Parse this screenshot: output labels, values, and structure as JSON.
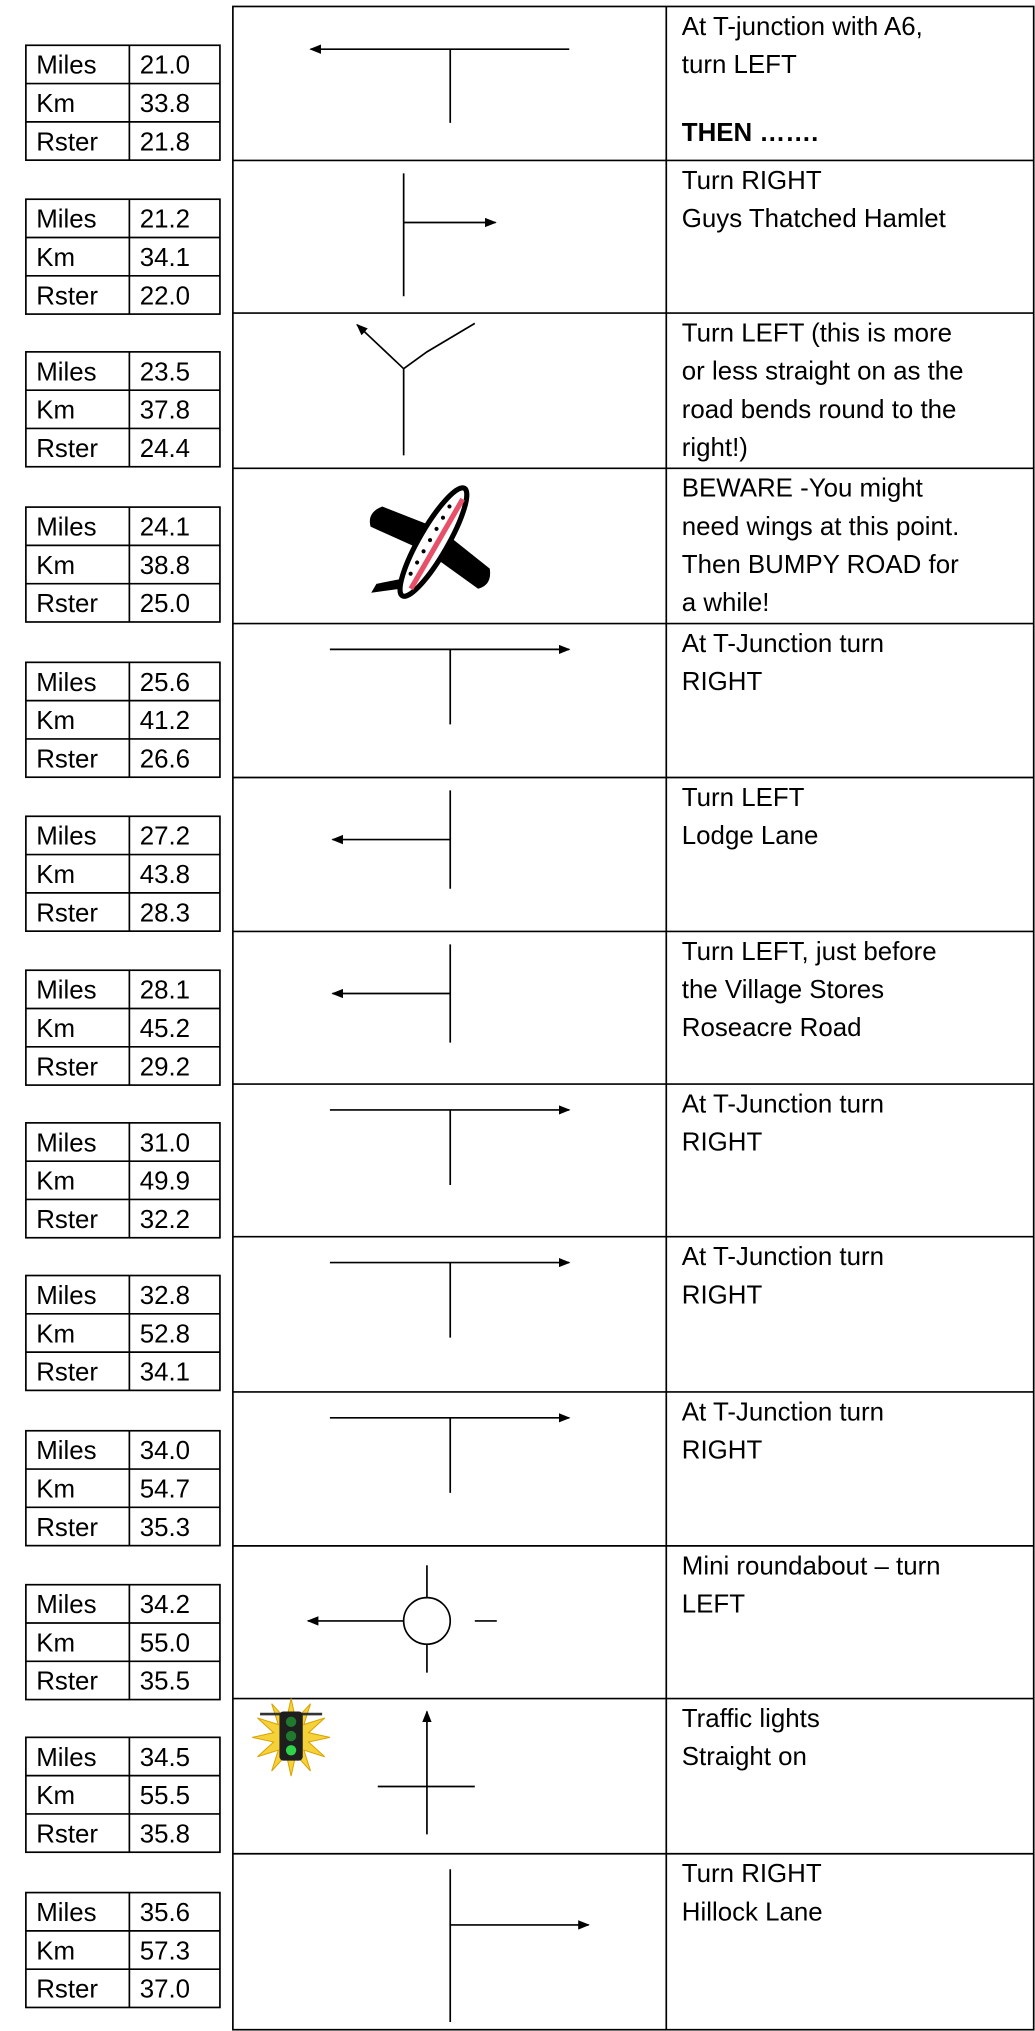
{
  "rows": [
    {
      "labels": [
        "Miles",
        "Km",
        "Rster"
      ],
      "values": [
        "21.0",
        "33.8",
        "21.8"
      ],
      "text": [
        "At T-junction with A6,",
        "turn LEFT"
      ],
      "emphasis": "THEN ……."
    },
    {
      "labels": [
        "Miles",
        "Km",
        "Rster"
      ],
      "values": [
        "21.2",
        "34.1",
        "22.0"
      ],
      "text": [
        "Turn RIGHT",
        "Guys Thatched Hamlet"
      ]
    },
    {
      "labels": [
        "Miles",
        "Km",
        "Rster"
      ],
      "values": [
        "23.5",
        "37.8",
        "24.4"
      ],
      "text": [
        "Turn LEFT (this is more",
        "or less straight on as the",
        "road bends round to the",
        "right!)"
      ]
    },
    {
      "labels": [
        "Miles",
        "Km",
        "Rster"
      ],
      "values": [
        "24.1",
        "38.8",
        "25.0"
      ],
      "text": [
        "BEWARE -You might",
        "need wings at this point.",
        "Then BUMPY ROAD for",
        "a while!"
      ]
    },
    {
      "labels": [
        "Miles",
        "Km",
        "Rster"
      ],
      "values": [
        "25.6",
        "41.2",
        "26.6"
      ],
      "text": [
        "At T-Junction turn",
        "RIGHT"
      ]
    },
    {
      "labels": [
        "Miles",
        "Km",
        "Rster"
      ],
      "values": [
        "27.2",
        "43.8",
        "28.3"
      ],
      "text": [
        "Turn LEFT",
        "Lodge Lane"
      ]
    },
    {
      "labels": [
        "Miles",
        "Km",
        "Rster"
      ],
      "values": [
        "28.1",
        "45.2",
        "29.2"
      ],
      "text": [
        "Turn LEFT, just before",
        "the Village Stores",
        "Roseacre Road"
      ]
    },
    {
      "labels": [
        "Miles",
        "Km",
        "Rster"
      ],
      "values": [
        "31.0",
        "49.9",
        "32.2"
      ],
      "text": [
        "At T-Junction turn",
        "RIGHT"
      ]
    },
    {
      "labels": [
        "Miles",
        "Km",
        "Rster"
      ],
      "values": [
        "32.8",
        "52.8",
        "34.1"
      ],
      "text": [
        "At T-Junction turn",
        "RIGHT"
      ]
    },
    {
      "labels": [
        "Miles",
        "Km",
        "Rster"
      ],
      "values": [
        "34.0",
        "54.7",
        "35.3"
      ],
      "text": [
        "At T-Junction turn",
        "RIGHT"
      ]
    },
    {
      "labels": [
        "Miles",
        "Km",
        "Rster"
      ],
      "values": [
        "34.2",
        "55.0",
        "35.5"
      ],
      "text": [
        "Mini roundabout – turn",
        "LEFT"
      ]
    },
    {
      "labels": [
        "Miles",
        "Km",
        "Rster"
      ],
      "values": [
        "34.5",
        "55.5",
        "35.8"
      ],
      "text": [
        "Traffic lights",
        "Straight on"
      ]
    },
    {
      "labels": [
        "Miles",
        "Km",
        "Rster"
      ],
      "values": [
        "35.6",
        "57.3",
        "37.0"
      ],
      "text": [
        "Turn RIGHT",
        "Hillock Lane"
      ]
    }
  ]
}
